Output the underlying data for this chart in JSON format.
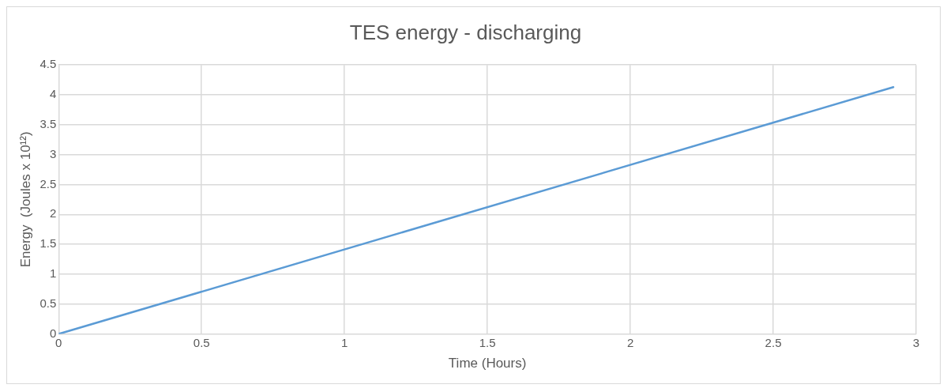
{
  "chart_data": {
    "type": "line",
    "title": "TES energy - discharging",
    "xlabel": "Time (Hours)",
    "ylabel": "Energy  (Joules x 10¹²)",
    "x": [
      0,
      2.92
    ],
    "series": [
      {
        "color": "#5b9bd5",
        "values": [
          0,
          4.13
        ]
      }
    ],
    "xlim": [
      0,
      3
    ],
    "xticks": [
      0,
      0.5,
      1,
      1.5,
      2,
      2.5,
      3
    ],
    "ylim": [
      0,
      4.5
    ],
    "yticks": [
      0,
      0.5,
      1,
      1.5,
      2,
      2.5,
      3,
      3.5,
      4,
      4.5
    ],
    "grid": true,
    "legend": false,
    "marker": "none",
    "line_style": "solid"
  }
}
